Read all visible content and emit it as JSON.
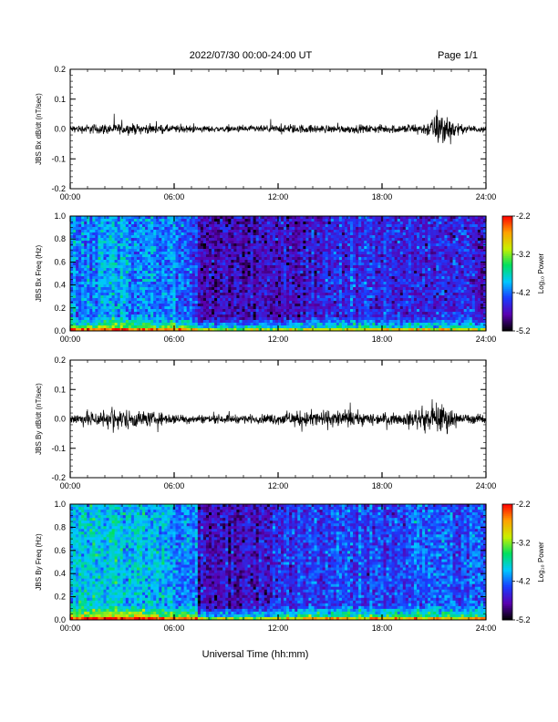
{
  "header": {
    "title": "2022/07/30  00:00-24:00 UT",
    "page": "Page 1/1"
  },
  "x_axis_label": "Universal Time (hh:mm)",
  "colorbar": {
    "label": "Log₁₀ Power",
    "ticks": [
      "-2.2",
      "-3.2",
      "-4.2",
      "-5.2"
    ],
    "colors": [
      "#000000",
      "#5a00b0",
      "#1a3cff",
      "#00c8ff",
      "#00e060",
      "#c8f000",
      "#ffa000",
      "#ff0000"
    ]
  },
  "chart_data": [
    {
      "type": "line",
      "title": "",
      "ylabel": "JBS Bx dB/dt (nT/sec)",
      "xlabel": "",
      "x_ticks": [
        "00:00",
        "06:00",
        "12:00",
        "18:00",
        "24:00"
      ],
      "y_ticks": [
        "0.2",
        "0.1",
        "0.0",
        "-0.1",
        "-0.2"
      ],
      "xlim": [
        0,
        24
      ],
      "ylim": [
        -0.2,
        0.2
      ],
      "series": [
        {
          "hours": [
            0,
            1.5,
            2.5,
            3.5,
            5,
            7,
            9,
            11,
            13,
            15,
            17,
            19,
            20.5,
            21.5,
            22.5,
            24
          ],
          "amplitude": [
            0.008,
            0.012,
            0.012,
            0.012,
            0.01,
            0.008,
            0.007,
            0.008,
            0.01,
            0.009,
            0.009,
            0.01,
            0.014,
            0.045,
            0.01,
            0.007
          ]
        }
      ]
    },
    {
      "type": "heatmap",
      "title": "",
      "ylabel": "JBS Bx Freq (Hz)",
      "xlabel": "",
      "x_ticks": [
        "00:00",
        "06:00",
        "12:00",
        "18:00",
        "24:00"
      ],
      "y_ticks": [
        "1.0",
        "0.8",
        "0.6",
        "0.4",
        "0.2",
        "0.0"
      ],
      "xlim": [
        0,
        24
      ],
      "ylim": [
        0,
        1.0
      ],
      "colorscale_range": [
        -5.2,
        -2.2
      ],
      "background_level_by_hour": {
        "hours": [
          0,
          3,
          6,
          7.3,
          7.4,
          10,
          13,
          16,
          19,
          21,
          24
        ],
        "log_power": [
          -4.1,
          -4.0,
          -4.2,
          -4.3,
          -4.7,
          -4.75,
          -4.6,
          -4.45,
          -4.5,
          -4.5,
          -4.55
        ]
      }
    },
    {
      "type": "line",
      "title": "",
      "ylabel": "JBS By dB/dt (nT/sec)",
      "xlabel": "",
      "x_ticks": [
        "00:00",
        "06:00",
        "12:00",
        "18:00",
        "24:00"
      ],
      "y_ticks": [
        "0.2",
        "0.1",
        "0.0",
        "-0.1",
        "-0.2"
      ],
      "xlim": [
        0,
        24
      ],
      "ylim": [
        -0.2,
        0.2
      ],
      "series": [
        {
          "hours": [
            0,
            1.5,
            2.5,
            3.5,
            5,
            7,
            9,
            11,
            12.5,
            14,
            16,
            17,
            19,
            21.5,
            22.5,
            24
          ],
          "amplitude": [
            0.012,
            0.02,
            0.025,
            0.022,
            0.015,
            0.01,
            0.01,
            0.01,
            0.016,
            0.02,
            0.02,
            0.015,
            0.012,
            0.035,
            0.012,
            0.01
          ]
        }
      ]
    },
    {
      "type": "heatmap",
      "title": "",
      "ylabel": "JBS By Freq (Hz)",
      "xlabel": "",
      "x_ticks": [
        "00:00",
        "06:00",
        "12:00",
        "18:00",
        "24:00"
      ],
      "y_ticks": [
        "1.0",
        "0.8",
        "0.6",
        "0.4",
        "0.2",
        "0.0"
      ],
      "xlim": [
        0,
        24
      ],
      "ylim": [
        0,
        1.0
      ],
      "colorscale_range": [
        -5.2,
        -2.2
      ],
      "background_level_by_hour": {
        "hours": [
          0,
          3,
          6,
          7.3,
          7.4,
          10,
          13,
          16,
          19,
          21,
          24
        ],
        "log_power": [
          -3.9,
          -3.8,
          -4.05,
          -4.2,
          -4.65,
          -4.7,
          -4.45,
          -4.3,
          -4.35,
          -4.25,
          -4.35
        ]
      }
    }
  ]
}
